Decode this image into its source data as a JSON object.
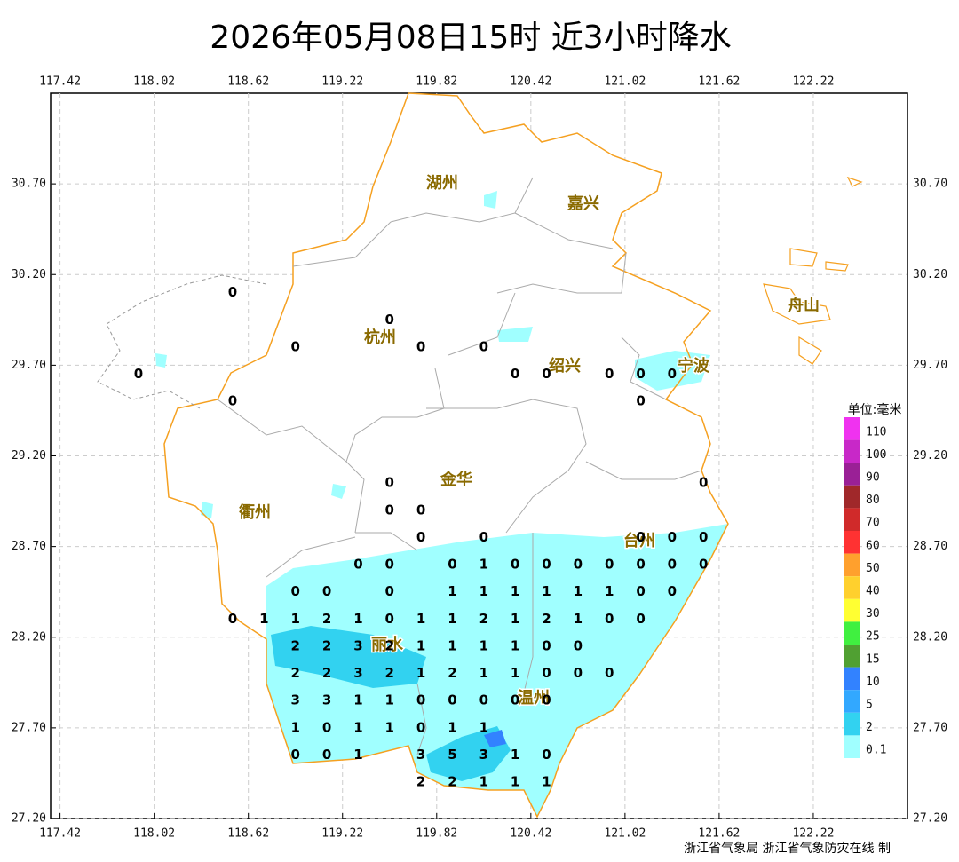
{
  "title": "2026年05月08日15时 近3小时降水",
  "footer": "浙江省气象局 浙江省气象防灾在线 制",
  "axes": {
    "xlim": [
      117.36,
      122.82
    ],
    "ylim": [
      27.2,
      31.2
    ],
    "xticks": [
      117.42,
      118.02,
      118.62,
      119.22,
      119.82,
      120.42,
      121.02,
      121.62,
      122.22
    ],
    "yticks": [
      {
        "value": 30.7,
        "label": "30.70"
      },
      {
        "value": 30.2,
        "label": "30.20"
      },
      {
        "value": 29.7,
        "label": "29.70"
      },
      {
        "value": 29.2,
        "label": "29.20"
      },
      {
        "value": 28.7,
        "label": "28.70"
      },
      {
        "value": 28.2,
        "label": "28.20"
      },
      {
        "value": 27.7,
        "label": "27.70"
      },
      {
        "value": 27.2,
        "label": "27.20"
      }
    ],
    "grid": true
  },
  "cities": [
    "湖州",
    "嘉兴",
    "杭州",
    "绍兴",
    "宁波",
    "舟山",
    "金华",
    "衢州",
    "台州",
    "丽水",
    "温州"
  ],
  "legend": {
    "title": "单位:毫米",
    "items": [
      {
        "value": 110,
        "color": "#f032f0"
      },
      {
        "value": 100,
        "color": "#c828c8"
      },
      {
        "value": 90,
        "color": "#9a2096"
      },
      {
        "value": 80,
        "color": "#a0282a"
      },
      {
        "value": 70,
        "color": "#d02a2a"
      },
      {
        "value": 60,
        "color": "#ff3232"
      },
      {
        "value": 50,
        "color": "#ffa02d"
      },
      {
        "value": 40,
        "color": "#ffd02d"
      },
      {
        "value": 30,
        "color": "#ffff32"
      },
      {
        "value": 25,
        "color": "#40f040"
      },
      {
        "value": 15,
        "color": "#50a032"
      },
      {
        "value": 10,
        "color": "#3282ff"
      },
      {
        "value": 5,
        "color": "#32a8ff"
      },
      {
        "value": 2,
        "color": "#32d2f0"
      },
      {
        "value": 0.1,
        "color": "#a0ffff"
      }
    ]
  },
  "stations": {
    "lons": [
      117.92,
      118.12,
      118.32,
      118.52,
      118.72,
      118.92,
      119.12,
      119.32,
      119.52,
      119.72,
      119.92,
      120.12,
      120.32,
      120.52,
      120.72,
      120.92,
      121.12,
      121.32,
      121.52
    ],
    "rows": [
      {
        "lat": 30.1,
        "values": [
          null,
          null,
          null,
          0,
          null,
          null,
          null,
          null,
          null,
          null,
          null,
          null,
          null,
          null,
          null,
          null,
          null,
          null,
          null
        ]
      },
      {
        "lat": 29.95,
        "values": [
          null,
          null,
          null,
          null,
          null,
          null,
          null,
          null,
          0,
          null,
          null,
          null,
          null,
          null,
          null,
          null,
          null,
          null,
          null
        ]
      },
      {
        "lat": 29.8,
        "values": [
          null,
          null,
          null,
          null,
          null,
          0,
          null,
          null,
          null,
          0,
          null,
          0,
          null,
          null,
          null,
          null,
          null,
          null,
          null
        ]
      },
      {
        "lat": 29.65,
        "values": [
          0,
          null,
          null,
          null,
          null,
          null,
          null,
          null,
          null,
          null,
          null,
          null,
          0,
          0,
          null,
          0,
          0,
          0,
          null
        ]
      },
      {
        "lat": 29.5,
        "values": [
          null,
          null,
          null,
          0,
          null,
          null,
          null,
          null,
          null,
          null,
          null,
          null,
          null,
          null,
          null,
          null,
          0,
          null,
          null
        ]
      },
      {
        "lat": 29.05,
        "values": [
          null,
          null,
          null,
          null,
          null,
          null,
          null,
          null,
          0,
          null,
          null,
          null,
          null,
          null,
          null,
          null,
          null,
          null,
          0
        ]
      },
      {
        "lat": 28.9,
        "values": [
          null,
          null,
          null,
          null,
          null,
          null,
          null,
          null,
          0,
          0,
          null,
          null,
          null,
          null,
          null,
          null,
          null,
          null,
          null
        ]
      },
      {
        "lat": 28.75,
        "values": [
          null,
          null,
          null,
          null,
          null,
          null,
          null,
          null,
          null,
          0,
          null,
          0,
          null,
          null,
          null,
          null,
          0,
          0,
          0
        ]
      },
      {
        "lat": 28.6,
        "values": [
          null,
          null,
          null,
          null,
          null,
          null,
          null,
          0,
          0,
          null,
          0,
          1,
          0,
          0,
          0,
          0,
          0,
          0,
          0
        ]
      },
      {
        "lat": 28.45,
        "values": [
          null,
          null,
          null,
          null,
          null,
          0,
          0,
          null,
          0,
          null,
          1,
          1,
          1,
          1,
          1,
          1,
          0,
          0,
          null
        ]
      },
      {
        "lat": 28.3,
        "values": [
          null,
          null,
          null,
          0,
          1,
          1,
          2,
          1,
          0,
          1,
          1,
          2,
          1,
          2,
          1,
          0,
          0,
          null,
          null
        ]
      },
      {
        "lat": 28.15,
        "values": [
          null,
          null,
          null,
          null,
          null,
          2,
          2,
          3,
          2,
          1,
          1,
          1,
          1,
          0,
          0,
          null,
          null,
          null,
          null
        ]
      },
      {
        "lat": 28.0,
        "values": [
          null,
          null,
          null,
          null,
          null,
          2,
          2,
          3,
          2,
          1,
          2,
          1,
          1,
          0,
          0,
          0,
          null,
          null,
          null
        ]
      },
      {
        "lat": 27.85,
        "values": [
          null,
          null,
          null,
          null,
          null,
          3,
          3,
          1,
          1,
          0,
          0,
          0,
          0,
          0,
          null,
          null,
          null,
          null,
          null
        ]
      },
      {
        "lat": 27.7,
        "values": [
          null,
          null,
          null,
          null,
          null,
          1,
          0,
          1,
          1,
          0,
          1,
          1,
          null,
          null,
          null,
          null,
          null,
          null,
          null
        ]
      },
      {
        "lat": 27.55,
        "values": [
          null,
          null,
          null,
          null,
          null,
          0,
          0,
          1,
          null,
          3,
          5,
          3,
          1,
          0,
          null,
          null,
          null,
          null,
          null
        ]
      },
      {
        "lat": 27.4,
        "values": [
          null,
          null,
          null,
          null,
          null,
          null,
          null,
          null,
          null,
          2,
          2,
          1,
          1,
          1,
          null,
          null,
          null,
          null,
          null
        ]
      }
    ]
  }
}
